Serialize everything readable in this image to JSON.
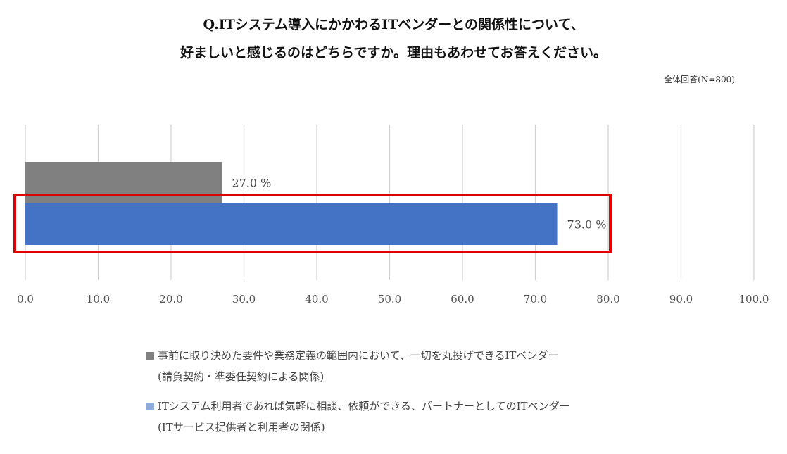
{
  "chart_data": {
    "type": "bar",
    "orientation": "horizontal",
    "title_lines": [
      "Q.ITシステム導入にかかわるITベンダーとの関係性について、",
      "好ましいと感じるのはどちらですか。理由もあわせてお答えください。"
    ],
    "note": "全体回答(N=800)",
    "xlim": [
      0,
      100
    ],
    "x_ticks": [
      "0.0",
      "10.0",
      "20.0",
      "30.0",
      "40.0",
      "50.0",
      "60.0",
      "70.0",
      "80.0",
      "90.0",
      "100.0"
    ],
    "grid": true,
    "series": [
      {
        "name_line1": "事前に取り決めた要件や業務定義の範囲内において、一切を丸投げできるITベンダー",
        "name_line2": "(請負契約・準委任契約による関係)",
        "value": 27.0,
        "label": "27.0 %",
        "color": "#808080"
      },
      {
        "name_line1": "ITシステム利用者であれば気軽に相談、依頼ができる、パートナーとしてのITベンダー",
        "name_line2": "(ITサービス提供者と利用者の関係)",
        "value": 73.0,
        "label": "73.0 %",
        "color": "#4472C4",
        "legend_color": "#8FAADC",
        "highlighted": true,
        "highlight_color": "#E00000"
      }
    ],
    "legend_position": "bottom"
  }
}
